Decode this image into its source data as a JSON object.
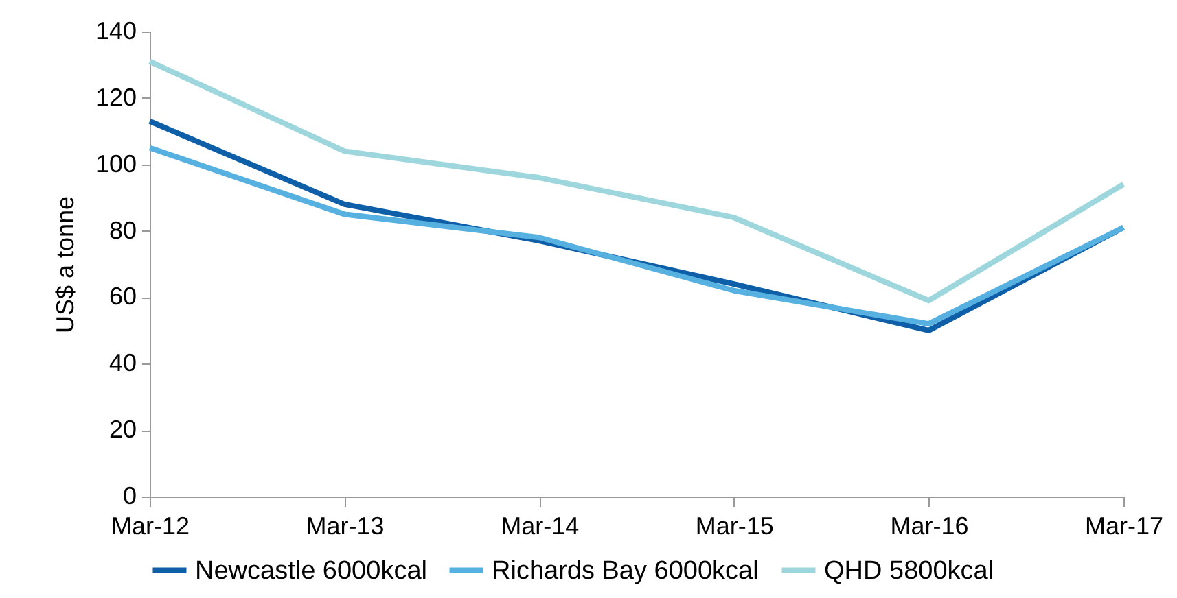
{
  "chart_data": {
    "type": "line",
    "ylabel": "US$ a tonne",
    "categories": [
      "Mar-12",
      "Mar-13",
      "Mar-14",
      "Mar-15",
      "Mar-16",
      "Mar-17"
    ],
    "series": [
      {
        "name": "Newcastle 6000kcal",
        "color": "#0e5fa8",
        "values": [
          113,
          88,
          77,
          64,
          50,
          81
        ]
      },
      {
        "name": "Richards Bay 6000kcal",
        "color": "#56b0e0",
        "values": [
          105,
          85,
          78,
          62,
          52,
          81
        ]
      },
      {
        "name": "QHD 5800kcal",
        "color": "#9dd6dc",
        "values": [
          131,
          104,
          96,
          84,
          59,
          94
        ]
      }
    ],
    "ylim": [
      0,
      140
    ],
    "yticks": [
      0,
      20,
      40,
      60,
      80,
      100,
      120,
      140
    ],
    "grid": false,
    "legend": "bottom",
    "marker": "none",
    "line_style": "solid"
  }
}
